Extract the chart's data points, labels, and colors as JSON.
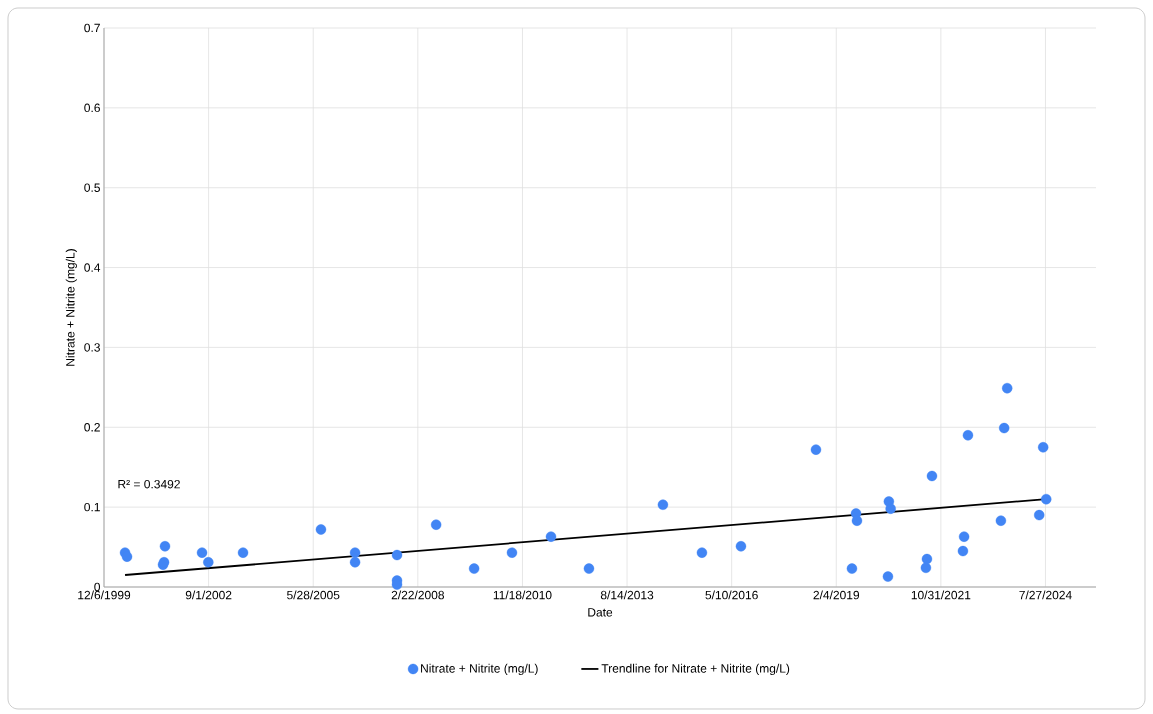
{
  "chart_data": {
    "type": "scatter",
    "xlabel": "Date",
    "ylabel": "Nitrate + Nitrite (mg/L)",
    "annotations": [
      "R² = 0.3492"
    ],
    "series": [
      {
        "name": "Nitrate + Nitrite (mg/L)",
        "color": "#4285f4",
        "marker": "circle",
        "x": [
          "2000-06-24",
          "2000-07-13",
          "2001-06-22",
          "2001-07-02",
          "2001-07-11",
          "2002-06-30",
          "2002-08-29",
          "2003-07-27",
          "2005-08-10",
          "2006-07-02",
          "2006-07-02",
          "2007-08-07",
          "2007-08-07",
          "2007-08-07",
          "2008-08-15",
          "2009-08-13",
          "2010-08-10",
          "2011-08-18",
          "2012-08-15",
          "2014-07-23",
          "2015-07-31",
          "2016-08-07",
          "2018-07-25",
          "2019-07-04",
          "2019-08-12",
          "2019-08-21",
          "2020-06-12",
          "2020-06-21",
          "2020-07-08",
          "2021-06-10",
          "2021-06-20",
          "2021-08-07",
          "2022-05-30",
          "2022-06-10",
          "2022-07-17",
          "2023-05-28",
          "2023-06-28",
          "2023-07-27",
          "2024-05-28",
          "2024-07-05",
          "2024-08-03"
        ],
        "values": [
          0.043,
          0.038,
          0.028,
          0.031,
          0.051,
          0.043,
          0.031,
          0.043,
          0.072,
          0.043,
          0.031,
          0.04,
          0.008,
          0.003,
          0.078,
          0.023,
          0.043,
          0.063,
          0.023,
          0.103,
          0.043,
          0.051,
          0.172,
          0.023,
          0.092,
          0.083,
          0.013,
          0.107,
          0.098,
          0.024,
          0.035,
          0.139,
          0.045,
          0.063,
          0.19,
          0.083,
          0.199,
          0.249,
          0.09,
          0.175,
          0.11
        ]
      },
      {
        "name": "Trendline for Nitrate + Nitrite (mg/L)",
        "type": "line",
        "color": "#000000",
        "marker": "none",
        "x": [
          "2000-06-24",
          "2024-08-03"
        ],
        "values": [
          0.015,
          0.11
        ]
      }
    ],
    "xlim": [
      "1999-12-06",
      "2025-11-22"
    ],
    "xticks": [
      {
        "value": "1999-12-06",
        "label": "12/6/1999"
      },
      {
        "value": "2002-09-01",
        "label": "9/1/2002"
      },
      {
        "value": "2005-05-28",
        "label": "5/28/2005"
      },
      {
        "value": "2008-02-22",
        "label": "2/22/2008"
      },
      {
        "value": "2010-11-18",
        "label": "11/18/2010"
      },
      {
        "value": "2013-08-14",
        "label": "8/14/2013"
      },
      {
        "value": "2016-05-10",
        "label": "5/10/2016"
      },
      {
        "value": "2019-02-04",
        "label": "2/4/2019"
      },
      {
        "value": "2021-10-31",
        "label": "10/31/2021"
      },
      {
        "value": "2024-07-27",
        "label": "7/27/2024"
      }
    ],
    "ylim": [
      0,
      0.7
    ],
    "yticks": [
      0,
      0.1,
      0.2,
      0.3,
      0.4,
      0.5,
      0.6,
      0.7
    ],
    "grid": true,
    "legend": "bottom"
  }
}
